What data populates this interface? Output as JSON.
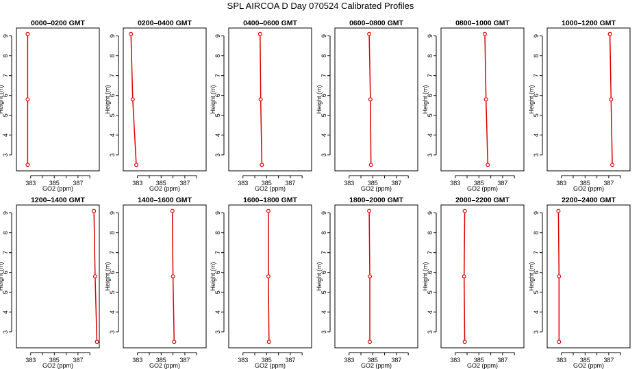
{
  "figure": {
    "title": "SPL AIRCOA D  Day 070524  Calibrated Profiles"
  },
  "chart_data": [
    {
      "type": "line",
      "title": "0000–0200 GMT",
      "xlabel": "GO2 (ppm)",
      "ylabel": "Height (m)",
      "xlim": [
        381.8,
        388.8
      ],
      "ylim": [
        2.2,
        9.4
      ],
      "xticks": [
        383,
        384,
        385,
        386,
        387,
        388
      ],
      "xtick_labels": [
        "383",
        "",
        "385",
        "",
        "387",
        ""
      ],
      "yticks": [
        3,
        4,
        5,
        6,
        7,
        8,
        9
      ],
      "series": [
        {
          "x": [
            382.75,
            382.75,
            382.75
          ],
          "y": [
            2.5,
            5.8,
            9.1
          ]
        }
      ]
    },
    {
      "type": "line",
      "title": "0200–0400 GMT",
      "xlabel": "GO2 (ppm)",
      "ylabel": "Height (m)",
      "xlim": [
        381.8,
        388.8
      ],
      "ylim": [
        2.2,
        9.4
      ],
      "xticks": [
        383,
        384,
        385,
        386,
        387,
        388
      ],
      "xtick_labels": [
        "383",
        "",
        "385",
        "",
        "387",
        ""
      ],
      "yticks": [
        3,
        4,
        5,
        6,
        7,
        8,
        9
      ],
      "series": [
        {
          "x": [
            382.9,
            382.6,
            382.45
          ],
          "y": [
            2.5,
            5.8,
            9.1
          ]
        }
      ]
    },
    {
      "type": "line",
      "title": "0400–0600 GMT",
      "xlabel": "GO2 (ppm)",
      "ylabel": "Height (m)",
      "xlim": [
        381.8,
        388.8
      ],
      "ylim": [
        2.2,
        9.4
      ],
      "xticks": [
        383,
        384,
        385,
        386,
        387,
        388
      ],
      "xtick_labels": [
        "383",
        "",
        "385",
        "",
        "387",
        ""
      ],
      "yticks": [
        3,
        4,
        5,
        6,
        7,
        8,
        9
      ],
      "series": [
        {
          "x": [
            384.6,
            384.5,
            384.45
          ],
          "y": [
            2.5,
            5.8,
            9.1
          ]
        }
      ]
    },
    {
      "type": "line",
      "title": "0600–0800 GMT",
      "xlabel": "GO2 (ppm)",
      "ylabel": "Height (m)",
      "xlim": [
        381.8,
        388.8
      ],
      "ylim": [
        2.2,
        9.4
      ],
      "xticks": [
        383,
        384,
        385,
        386,
        387,
        388
      ],
      "xtick_labels": [
        "383",
        "",
        "385",
        "",
        "387",
        ""
      ],
      "yticks": [
        3,
        4,
        5,
        6,
        7,
        8,
        9
      ],
      "series": [
        {
          "x": [
            384.85,
            384.8,
            384.7
          ],
          "y": [
            2.5,
            5.8,
            9.1
          ]
        }
      ]
    },
    {
      "type": "line",
      "title": "0800–1000 GMT",
      "xlabel": "GO2 (ppm)",
      "ylabel": "Height (m)",
      "xlim": [
        381.8,
        388.8
      ],
      "ylim": [
        2.2,
        9.4
      ],
      "xticks": [
        383,
        384,
        385,
        386,
        387,
        388
      ],
      "xtick_labels": [
        "383",
        "",
        "385",
        "",
        "387",
        ""
      ],
      "yticks": [
        3,
        4,
        5,
        6,
        7,
        8,
        9
      ],
      "series": [
        {
          "x": [
            385.75,
            385.6,
            385.5
          ],
          "y": [
            2.5,
            5.8,
            9.1
          ]
        }
      ]
    },
    {
      "type": "line",
      "title": "1000–1200 GMT",
      "xlabel": "GO2 (ppm)",
      "ylabel": "Height (m)",
      "xlim": [
        381.8,
        388.8
      ],
      "ylim": [
        2.2,
        9.4
      ],
      "xticks": [
        383,
        384,
        385,
        386,
        387,
        388
      ],
      "xtick_labels": [
        "383",
        "",
        "385",
        "",
        "387",
        ""
      ],
      "yticks": [
        3,
        4,
        5,
        6,
        7,
        8,
        9
      ],
      "series": [
        {
          "x": [
            387.3,
            387.2,
            387.1
          ],
          "y": [
            2.5,
            5.8,
            9.1
          ]
        }
      ]
    },
    {
      "type": "line",
      "title": "1200–1400 GMT",
      "xlabel": "GO2 (ppm)",
      "ylabel": "Height (m)",
      "xlim": [
        381.8,
        388.8
      ],
      "ylim": [
        2.2,
        9.4
      ],
      "xticks": [
        383,
        384,
        385,
        386,
        387,
        388
      ],
      "xtick_labels": [
        "383",
        "",
        "385",
        "",
        "387",
        ""
      ],
      "yticks": [
        3,
        4,
        5,
        6,
        7,
        8,
        9
      ],
      "series": [
        {
          "x": [
            388.6,
            388.45,
            388.35
          ],
          "y": [
            2.5,
            5.8,
            9.1
          ]
        }
      ]
    },
    {
      "type": "line",
      "title": "1400–1600 GMT",
      "xlabel": "GO2 (ppm)",
      "ylabel": "Height (m)",
      "xlim": [
        381.8,
        388.8
      ],
      "ylim": [
        2.2,
        9.4
      ],
      "xticks": [
        383,
        384,
        385,
        386,
        387,
        388
      ],
      "xtick_labels": [
        "383",
        "",
        "385",
        "",
        "387",
        ""
      ],
      "yticks": [
        3,
        4,
        5,
        6,
        7,
        8,
        9
      ],
      "series": [
        {
          "x": [
            386.1,
            386.0,
            385.95
          ],
          "y": [
            2.5,
            5.8,
            9.1
          ]
        }
      ]
    },
    {
      "type": "line",
      "title": "1600–1800 GMT",
      "xlabel": "GO2 (ppm)",
      "ylabel": "Height (m)",
      "xlim": [
        381.8,
        388.8
      ],
      "ylim": [
        2.2,
        9.4
      ],
      "xticks": [
        383,
        384,
        385,
        386,
        387,
        388
      ],
      "xtick_labels": [
        "383",
        "",
        "385",
        "",
        "387",
        ""
      ],
      "yticks": [
        3,
        4,
        5,
        6,
        7,
        8,
        9
      ],
      "series": [
        {
          "x": [
            385.2,
            385.15,
            385.15
          ],
          "y": [
            2.5,
            5.8,
            9.1
          ]
        }
      ]
    },
    {
      "type": "line",
      "title": "1800–2000 GMT",
      "xlabel": "GO2 (ppm)",
      "ylabel": "Height (m)",
      "xlim": [
        381.8,
        388.8
      ],
      "ylim": [
        2.2,
        9.4
      ],
      "xticks": [
        383,
        384,
        385,
        386,
        387,
        388
      ],
      "xtick_labels": [
        "383",
        "",
        "385",
        "",
        "387",
        ""
      ],
      "yticks": [
        3,
        4,
        5,
        6,
        7,
        8,
        9
      ],
      "series": [
        {
          "x": [
            384.75,
            384.75,
            384.7
          ],
          "y": [
            2.5,
            5.8,
            9.1
          ]
        }
      ]
    },
    {
      "type": "line",
      "title": "2000–2200 GMT",
      "xlabel": "GO2 (ppm)",
      "ylabel": "Height (m)",
      "xlim": [
        381.8,
        388.8
      ],
      "ylim": [
        2.2,
        9.4
      ],
      "xticks": [
        383,
        384,
        385,
        386,
        387,
        388
      ],
      "xtick_labels": [
        "383",
        "",
        "385",
        "",
        "387",
        ""
      ],
      "yticks": [
        3,
        4,
        5,
        6,
        7,
        8,
        9
      ],
      "series": [
        {
          "x": [
            383.8,
            383.75,
            383.8
          ],
          "y": [
            2.5,
            5.8,
            9.1
          ]
        }
      ]
    },
    {
      "type": "line",
      "title": "2200–2400 GMT",
      "xlabel": "GO2 (ppm)",
      "ylabel": "Height (m)",
      "xlim": [
        381.8,
        388.8
      ],
      "ylim": [
        2.2,
        9.4
      ],
      "xticks": [
        383,
        384,
        385,
        386,
        387,
        388
      ],
      "xtick_labels": [
        "383",
        "",
        "385",
        "",
        "387",
        ""
      ],
      "yticks": [
        3,
        4,
        5,
        6,
        7,
        8,
        9
      ],
      "series": [
        {
          "x": [
            382.8,
            382.8,
            382.75
          ],
          "y": [
            2.5,
            5.8,
            9.1
          ]
        }
      ]
    }
  ],
  "colors": {
    "line": "#dd0000",
    "marker": "#dd0000",
    "axis": "#000000"
  }
}
